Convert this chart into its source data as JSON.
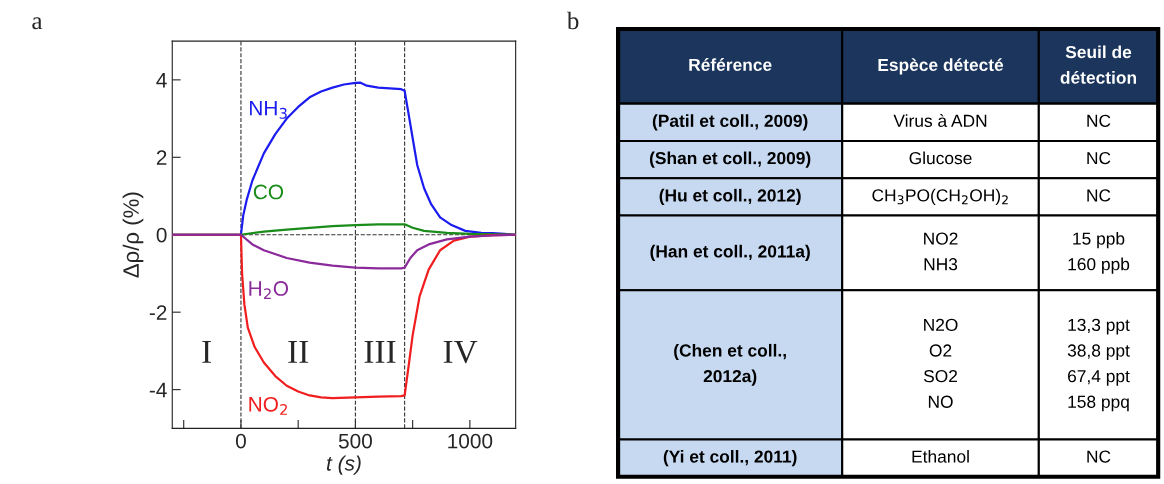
{
  "chart_data": [
    {
      "type": "line",
      "title": "a",
      "xlabel": "t (s)",
      "ylabel": "Δρ/ρ (%)",
      "xlim": [
        -300,
        1200
      ],
      "xticks": [
        {
          "value": -250,
          "label": null
        },
        0,
        {
          "value": 250,
          "label": null
        },
        500,
        {
          "value": 750,
          "label": null
        },
        1000
      ],
      "ylim": [
        -5,
        5
      ],
      "yticks": [
        -4,
        -2,
        0,
        2,
        4
      ],
      "grid": false,
      "legend": false,
      "marker": "none",
      "line_style": "solid",
      "ref_lines": [
        {
          "axis": "x",
          "value": 0,
          "line_style": "dashed"
        },
        {
          "axis": "x",
          "value": 500,
          "line_style": "dashed"
        },
        {
          "axis": "x",
          "value": 715,
          "line_style": "dashed"
        },
        {
          "axis": "y",
          "value": 0,
          "line_style": "dashed"
        }
      ],
      "annotations": [
        "I",
        "II",
        "III",
        "IV"
      ],
      "series": [
        {
          "name": "NH$_{3}$",
          "color": "#1c1cf0",
          "x": [
            -300,
            0,
            10,
            25,
            50,
            100,
            150,
            200,
            250,
            300,
            350,
            400,
            450,
            500,
            520,
            550,
            600,
            650,
            700,
            715,
            730,
            750,
            770,
            800,
            830,
            870,
            920,
            980,
            1050,
            1100,
            1150,
            1200
          ],
          "values": [
            0,
            0,
            0.5,
            0.9,
            1.4,
            2.1,
            2.6,
            3.0,
            3.3,
            3.55,
            3.7,
            3.8,
            3.88,
            3.92,
            3.93,
            3.85,
            3.8,
            3.78,
            3.76,
            3.72,
            3.2,
            2.5,
            1.8,
            1.2,
            0.8,
            0.45,
            0.25,
            0.1,
            0.05,
            0.04,
            0.02,
            0
          ]
        },
        {
          "name": "CO",
          "color": "#1a8c1a",
          "x": [
            -300,
            0,
            100,
            200,
            300,
            400,
            500,
            600,
            700,
            715,
            750,
            800,
            900,
            1000,
            1200
          ],
          "values": [
            0,
            0,
            0.08,
            0.13,
            0.18,
            0.22,
            0.25,
            0.27,
            0.27,
            0.27,
            0.18,
            0.1,
            0.05,
            0.02,
            0
          ]
        },
        {
          "name": "NO$_{2}$",
          "color": "#f01e1e",
          "x": [
            -300,
            0,
            5,
            15,
            30,
            60,
            100,
            150,
            200,
            250,
            300,
            350,
            400,
            500,
            600,
            700,
            715,
            730,
            750,
            780,
            820,
            870,
            930,
            1000,
            1100,
            1200
          ],
          "values": [
            0,
            0,
            -1.0,
            -1.8,
            -2.4,
            -2.9,
            -3.3,
            -3.65,
            -3.9,
            -4.05,
            -4.15,
            -4.2,
            -4.22,
            -4.2,
            -4.18,
            -4.17,
            -4.15,
            -3.5,
            -2.6,
            -1.6,
            -0.9,
            -0.4,
            -0.15,
            -0.05,
            -0.01,
            0
          ]
        },
        {
          "name": "H$_{2}$O",
          "color": "#8b2a9b",
          "x": [
            -300,
            0,
            50,
            100,
            200,
            300,
            400,
            500,
            600,
            700,
            715,
            740,
            770,
            820,
            900,
            1000,
            1100,
            1200
          ],
          "values": [
            0,
            0,
            -0.25,
            -0.4,
            -0.6,
            -0.72,
            -0.8,
            -0.85,
            -0.87,
            -0.87,
            -0.85,
            -0.6,
            -0.4,
            -0.25,
            -0.12,
            -0.05,
            -0.02,
            0
          ]
        }
      ]
    },
    {
      "type": "other",
      "title": "b",
      "annotations": [
        "Référence",
        "Espèce détecté",
        "Seuil de\ndétection",
        "(Patil et coll., 2009)",
        "Virus à ADN",
        "NC",
        "(Shan et coll., 2009)",
        "Glucose",
        "NC",
        "(Hu et coll., 2012)",
        "CH$_{3}$PO(CH$_{2}$OH)$_{2}$",
        "NC",
        "(Han et coll., 2011a)",
        "NO2\nNH3",
        "15 ppb\n160 ppb",
        "(Chen et coll.,\n2012a)",
        "N2O\nO2\nSO2\nNO",
        "13,3 ppt\n38,8 ppt\n67,4 ppt\n158 ppq",
        "(Yi et coll., 2011)",
        "Ethanol",
        "NC"
      ]
    }
  ]
}
